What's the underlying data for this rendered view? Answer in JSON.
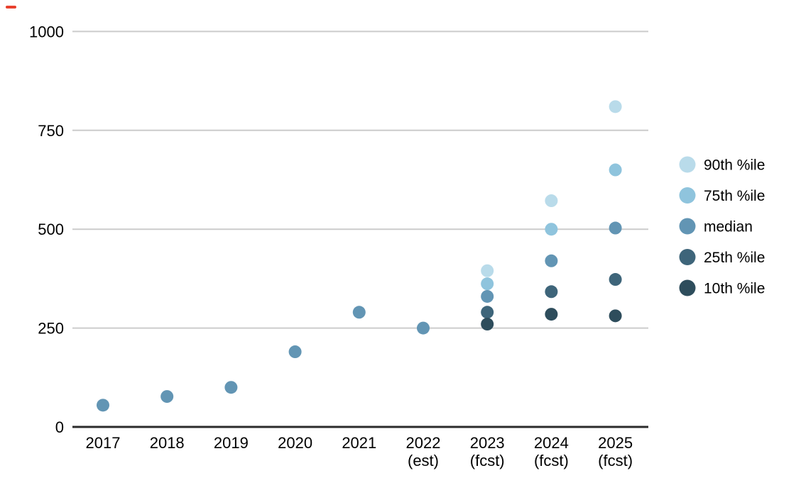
{
  "marker": {
    "color": "#e8402d"
  },
  "chart_data": {
    "type": "scatter",
    "title": "",
    "xlabel": "",
    "ylabel": "",
    "categories": [
      "2017",
      "2018",
      "2019",
      "2020",
      "2021",
      "2022 (est)",
      "2023 (fcst)",
      "2024 (fcst)",
      "2025 (fcst)"
    ],
    "x_ticks": [
      {
        "label": "2017",
        "sub": ""
      },
      {
        "label": "2018",
        "sub": ""
      },
      {
        "label": "2019",
        "sub": ""
      },
      {
        "label": "2020",
        "sub": ""
      },
      {
        "label": "2021",
        "sub": ""
      },
      {
        "label": "2022",
        "sub": "(est)"
      },
      {
        "label": "2023",
        "sub": "(fcst)"
      },
      {
        "label": "2024",
        "sub": "(fcst)"
      },
      {
        "label": "2025",
        "sub": "(fcst)"
      }
    ],
    "yticks": [
      0,
      250,
      500,
      750,
      1000
    ],
    "ylim": [
      0,
      1000
    ],
    "grid": true,
    "grid_color": "#cccccc",
    "axis_color": "#2b2b2b",
    "legend_position": "right",
    "series": [
      {
        "name": "90th %ile",
        "color": "#b9dbea",
        "values": [
          null,
          null,
          null,
          null,
          null,
          null,
          395,
          572,
          810
        ]
      },
      {
        "name": "75th %ile",
        "color": "#8fc4dd",
        "values": [
          null,
          null,
          null,
          null,
          null,
          null,
          362,
          500,
          650
        ]
      },
      {
        "name": "median",
        "color": "#6295b4",
        "values": [
          55,
          77,
          100,
          190,
          290,
          250,
          330,
          420,
          503
        ]
      },
      {
        "name": "25th %ile",
        "color": "#3e657a",
        "values": [
          null,
          null,
          null,
          null,
          null,
          null,
          290,
          342,
          373
        ]
      },
      {
        "name": "10th %ile",
        "color": "#2e4d5c",
        "values": [
          null,
          null,
          null,
          null,
          null,
          null,
          260,
          285,
          281
        ]
      }
    ]
  }
}
